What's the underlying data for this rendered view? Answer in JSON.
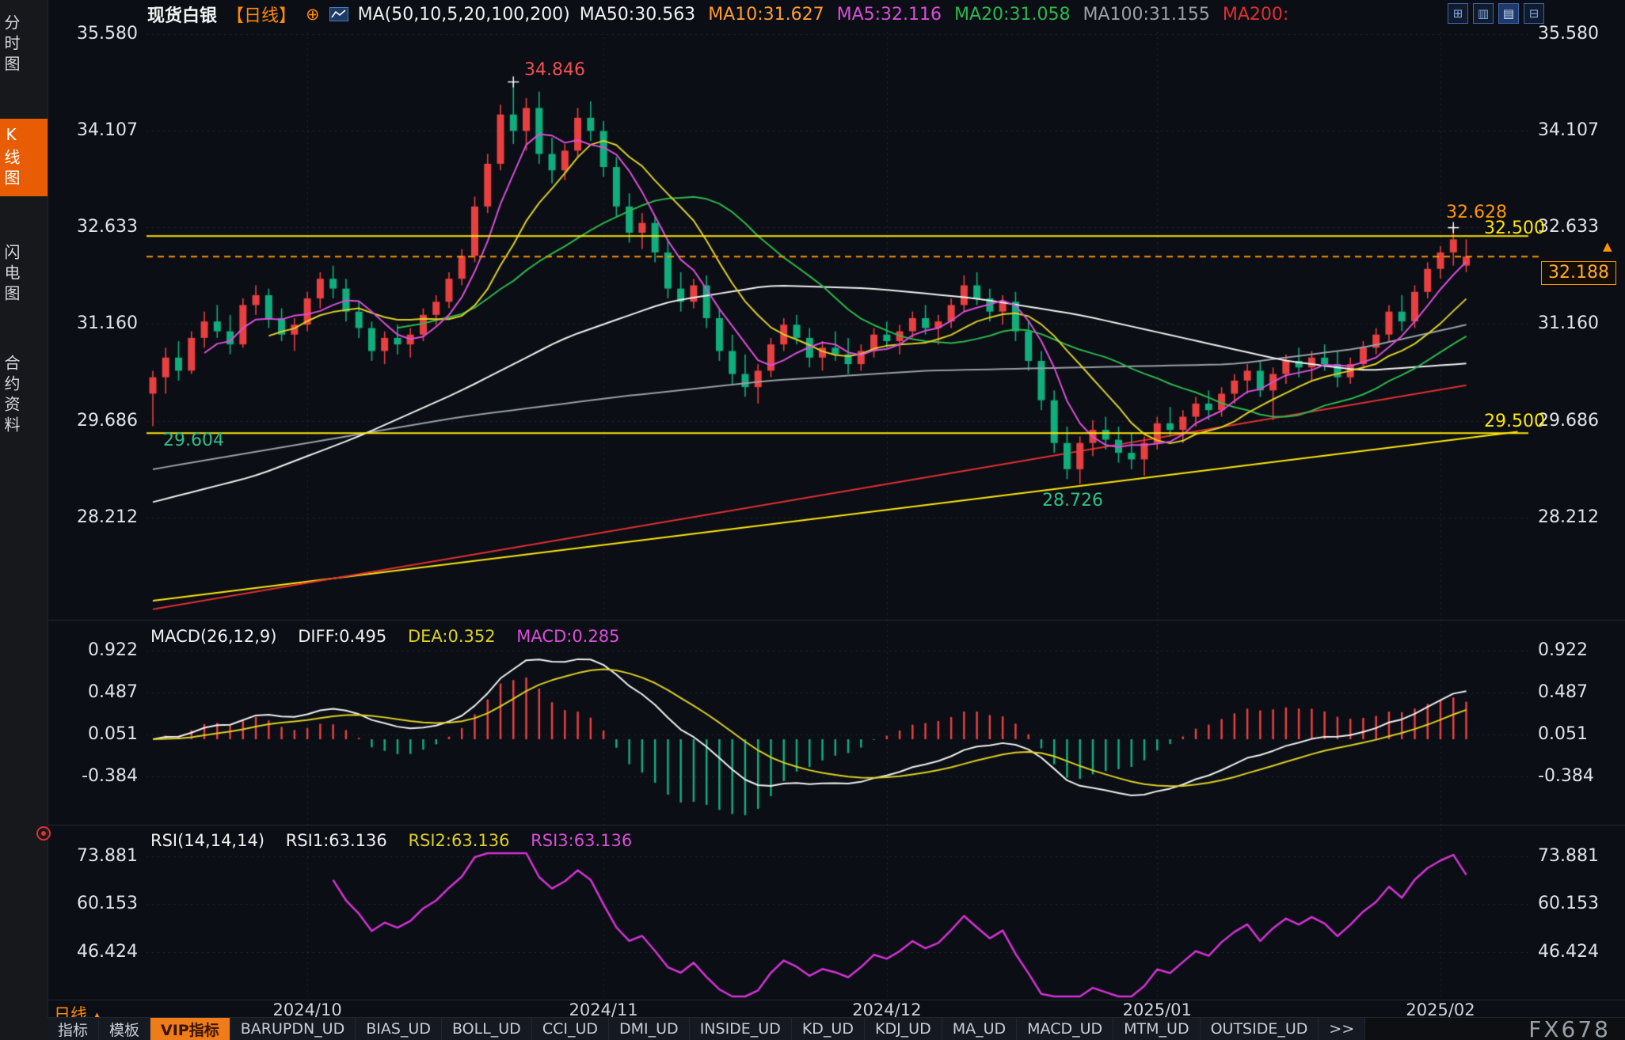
{
  "app": {
    "watermark": "FX678"
  },
  "colors": {
    "background": "#0b0e15",
    "up": "#e84040",
    "down": "#0fae7c",
    "ma5": "#d94fd9",
    "ma10": "#ddd024",
    "ma20": "#2db84d",
    "ma50": "#f0f0f0",
    "ma100": "#9aa0a8",
    "ma200": "#e03030",
    "drawn_line": "#ffe60a",
    "current_price": "#ff9500",
    "dif": "#f0f0f0",
    "dea": "#ddd024",
    "rsi": "#d633d6",
    "accent_orange": "#ff8a00"
  },
  "sidebar": {
    "items": [
      {
        "label": "分时图",
        "active": false
      },
      {
        "label": "K线图",
        "active": true
      },
      {
        "label": "闪电图",
        "active": false
      },
      {
        "label": "合约资料",
        "active": false
      }
    ]
  },
  "header": {
    "symbol": "现货白银",
    "period_tag": "【日线】",
    "plus_icon": "⊕",
    "ma_settings": "MA(50,10,5,20,100,200)",
    "ma_values": [
      {
        "label": "MA50:30.563",
        "color": "#f0f0f0"
      },
      {
        "label": "MA10:31.627",
        "color": "#ff9d2e"
      },
      {
        "label": "MA5:32.116",
        "color": "#d94fd9"
      },
      {
        "label": "MA20:31.058",
        "color": "#2db84d"
      },
      {
        "label": "MA100:31.155",
        "color": "#9aa0a8"
      },
      {
        "label": "MA200:",
        "color": "#e03030"
      }
    ],
    "toolbar_icons": [
      {
        "name": "grid-layout-icon",
        "glyph": "⊞",
        "active": false
      },
      {
        "name": "candlestick-view-icon",
        "glyph": "▥",
        "active": false
      },
      {
        "name": "line-view-icon",
        "glyph": "▤",
        "active": true
      },
      {
        "name": "expand-panel-icon",
        "glyph": "⊟",
        "active": false
      }
    ]
  },
  "macd_panel": {
    "title": "MACD(26,12,9)",
    "diff": "DIFF:0.495",
    "dea": "DEA:0.352",
    "macd": "MACD:0.285"
  },
  "rsi_panel": {
    "title": "RSI(14,14,14)",
    "rsi1": "RSI1:63.136",
    "rsi2": "RSI2:63.136",
    "rsi3": "RSI3:63.136"
  },
  "annotations": {
    "peak": "34.846",
    "left_low": "29.604",
    "crash_low": "28.726",
    "last_high": "32.628",
    "resistance": "32.500",
    "support": "29.500",
    "current_price": "32.188",
    "up_arrow": "▲"
  },
  "footer": {
    "period_label": "日线",
    "period_arrow": "▲",
    "tabs": [
      {
        "label": "指标",
        "active": false
      },
      {
        "label": "模板",
        "active": false
      },
      {
        "label": "VIP指标",
        "active": true
      },
      {
        "label": "BARUPDN_UD",
        "active": false
      },
      {
        "label": "BIAS_UD",
        "active": false
      },
      {
        "label": "BOLL_UD",
        "active": false
      },
      {
        "label": "CCI_UD",
        "active": false
      },
      {
        "label": "DMI_UD",
        "active": false
      },
      {
        "label": "INSIDE_UD",
        "active": false
      },
      {
        "label": "KD_UD",
        "active": false
      },
      {
        "label": "KDJ_UD",
        "active": false
      },
      {
        "label": "MA_UD",
        "active": false
      },
      {
        "label": "MACD_UD",
        "active": false
      },
      {
        "label": "MTM_UD",
        "active": false
      },
      {
        "label": "OUTSIDE_UD",
        "active": false
      },
      {
        "label": ">>",
        "active": false
      }
    ]
  },
  "chart_data": {
    "type": "candlestick",
    "title": "现货白银 日线",
    "price_axis_ticks": [
      "35.580",
      "34.107",
      "32.633",
      "31.160",
      "29.686",
      "28.212"
    ],
    "x_tick_labels": [
      "2024/10",
      "2024/11",
      "2024/12",
      "2025/01",
      "2025/02"
    ],
    "x_tick_indices": [
      12,
      35,
      57,
      78,
      100
    ],
    "candles": [
      [
        30.1,
        30.45,
        29.604,
        30.35
      ],
      [
        30.35,
        30.8,
        30.1,
        30.65
      ],
      [
        30.65,
        30.9,
        30.3,
        30.45
      ],
      [
        30.45,
        31.05,
        30.4,
        30.95
      ],
      [
        30.95,
        31.35,
        30.8,
        31.2
      ],
      [
        31.2,
        31.45,
        30.95,
        31.05
      ],
      [
        31.05,
        31.3,
        30.7,
        30.85
      ],
      [
        30.85,
        31.55,
        30.8,
        31.45
      ],
      [
        31.45,
        31.75,
        31.3,
        31.6
      ],
      [
        31.6,
        31.7,
        31.1,
        31.25
      ],
      [
        31.25,
        31.4,
        30.9,
        31.0
      ],
      [
        31.0,
        31.25,
        30.75,
        31.15
      ],
      [
        31.15,
        31.65,
        31.05,
        31.55
      ],
      [
        31.55,
        31.95,
        31.4,
        31.85
      ],
      [
        31.85,
        32.05,
        31.55,
        31.7
      ],
      [
        31.7,
        31.85,
        31.2,
        31.35
      ],
      [
        31.35,
        31.5,
        30.95,
        31.1
      ],
      [
        31.1,
        31.2,
        30.6,
        30.75
      ],
      [
        30.75,
        31.05,
        30.55,
        30.95
      ],
      [
        30.95,
        31.15,
        30.7,
        30.85
      ],
      [
        30.85,
        31.1,
        30.65,
        31.0
      ],
      [
        31.0,
        31.4,
        30.9,
        31.3
      ],
      [
        31.3,
        31.6,
        31.15,
        31.5
      ],
      [
        31.5,
        31.95,
        31.4,
        31.85
      ],
      [
        31.85,
        32.3,
        31.75,
        32.2
      ],
      [
        32.2,
        33.1,
        32.1,
        32.95
      ],
      [
        32.95,
        33.75,
        32.85,
        33.6
      ],
      [
        33.6,
        34.5,
        33.5,
        34.35
      ],
      [
        34.35,
        34.846,
        33.9,
        34.1
      ],
      [
        34.1,
        34.6,
        33.8,
        34.45
      ],
      [
        34.45,
        34.7,
        33.6,
        33.75
      ],
      [
        33.75,
        34.0,
        33.3,
        33.5
      ],
      [
        33.5,
        33.9,
        33.35,
        33.8
      ],
      [
        33.8,
        34.45,
        33.7,
        34.3
      ],
      [
        34.3,
        34.55,
        33.95,
        34.1
      ],
      [
        34.1,
        34.25,
        33.4,
        33.55
      ],
      [
        33.55,
        33.7,
        32.8,
        32.95
      ],
      [
        32.95,
        33.15,
        32.4,
        32.55
      ],
      [
        32.55,
        32.85,
        32.3,
        32.7
      ],
      [
        32.7,
        32.8,
        32.1,
        32.25
      ],
      [
        32.25,
        32.45,
        31.55,
        31.7
      ],
      [
        31.7,
        31.95,
        31.35,
        31.5
      ],
      [
        31.5,
        31.85,
        31.4,
        31.75
      ],
      [
        31.75,
        31.9,
        31.1,
        31.25
      ],
      [
        31.25,
        31.4,
        30.6,
        30.75
      ],
      [
        30.75,
        31.0,
        30.25,
        30.4
      ],
      [
        30.4,
        30.7,
        30.05,
        30.2
      ],
      [
        30.2,
        30.55,
        29.95,
        30.45
      ],
      [
        30.45,
        30.95,
        30.35,
        30.85
      ],
      [
        30.85,
        31.25,
        30.75,
        31.15
      ],
      [
        31.15,
        31.3,
        30.85,
        30.95
      ],
      [
        30.95,
        31.1,
        30.5,
        30.65
      ],
      [
        30.65,
        30.9,
        30.45,
        30.8
      ],
      [
        30.8,
        31.05,
        30.6,
        30.7
      ],
      [
        30.7,
        30.95,
        30.4,
        30.55
      ],
      [
        30.55,
        30.85,
        30.45,
        30.75
      ],
      [
        30.75,
        31.1,
        30.65,
        31.0
      ],
      [
        31.0,
        31.2,
        30.8,
        30.9
      ],
      [
        30.9,
        31.15,
        30.7,
        31.05
      ],
      [
        31.05,
        31.35,
        30.95,
        31.25
      ],
      [
        31.25,
        31.45,
        31.0,
        31.1
      ],
      [
        31.1,
        31.3,
        30.85,
        31.2
      ],
      [
        31.2,
        31.55,
        31.1,
        31.45
      ],
      [
        31.45,
        31.9,
        31.35,
        31.75
      ],
      [
        31.75,
        31.95,
        31.45,
        31.55
      ],
      [
        31.55,
        31.7,
        31.2,
        31.35
      ],
      [
        31.35,
        31.6,
        31.15,
        31.5
      ],
      [
        31.5,
        31.65,
        30.9,
        31.05
      ],
      [
        31.05,
        31.2,
        30.45,
        30.6
      ],
      [
        30.6,
        30.75,
        29.85,
        30.0
      ],
      [
        30.0,
        30.15,
        29.2,
        29.35
      ],
      [
        29.35,
        29.6,
        28.8,
        28.95
      ],
      [
        28.95,
        29.45,
        28.726,
        29.35
      ],
      [
        29.35,
        29.7,
        29.15,
        29.55
      ],
      [
        29.55,
        29.75,
        29.25,
        29.4
      ],
      [
        29.4,
        29.6,
        29.05,
        29.2
      ],
      [
        29.2,
        29.5,
        28.95,
        29.1
      ],
      [
        29.1,
        29.45,
        28.85,
        29.35
      ],
      [
        29.35,
        29.75,
        29.25,
        29.65
      ],
      [
        29.65,
        29.9,
        29.45,
        29.55
      ],
      [
        29.55,
        29.85,
        29.35,
        29.75
      ],
      [
        29.75,
        30.05,
        29.6,
        29.95
      ],
      [
        29.95,
        30.15,
        29.7,
        29.85
      ],
      [
        29.85,
        30.2,
        29.75,
        30.1
      ],
      [
        30.1,
        30.4,
        29.95,
        30.3
      ],
      [
        30.3,
        30.55,
        30.1,
        30.45
      ],
      [
        30.45,
        30.6,
        30.05,
        30.15
      ],
      [
        30.15,
        30.5,
        29.7,
        30.4
      ],
      [
        30.4,
        30.7,
        30.25,
        30.6
      ],
      [
        30.6,
        30.8,
        30.35,
        30.5
      ],
      [
        30.5,
        30.75,
        30.3,
        30.65
      ],
      [
        30.65,
        30.85,
        30.45,
        30.55
      ],
      [
        30.55,
        30.75,
        30.2,
        30.35
      ],
      [
        30.35,
        30.65,
        30.25,
        30.55
      ],
      [
        30.55,
        30.9,
        30.45,
        30.8
      ],
      [
        30.8,
        31.1,
        30.7,
        31.0
      ],
      [
        31.0,
        31.45,
        30.9,
        31.35
      ],
      [
        31.35,
        31.6,
        31.05,
        31.2
      ],
      [
        31.2,
        31.75,
        31.1,
        31.65
      ],
      [
        31.65,
        32.1,
        31.55,
        32.0
      ],
      [
        32.0,
        32.35,
        31.85,
        32.25
      ],
      [
        32.25,
        32.628,
        32.05,
        32.45
      ],
      [
        32.05,
        32.45,
        31.95,
        32.188
      ]
    ],
    "overlays": {
      "ma_periods": [
        5,
        10,
        20
      ],
      "ma50_points": [
        [
          0,
          28.45
        ],
        [
          8,
          28.85
        ],
        [
          16,
          29.45
        ],
        [
          24,
          30.15
        ],
        [
          32,
          30.95
        ],
        [
          40,
          31.5
        ],
        [
          48,
          31.75
        ],
        [
          56,
          31.7
        ],
        [
          64,
          31.55
        ],
        [
          72,
          31.3
        ],
        [
          80,
          30.95
        ],
        [
          88,
          30.6
        ],
        [
          94,
          30.45
        ],
        [
          102,
          30.56
        ]
      ],
      "ma100_points": [
        [
          0,
          28.95
        ],
        [
          12,
          29.35
        ],
        [
          24,
          29.75
        ],
        [
          36,
          30.05
        ],
        [
          48,
          30.3
        ],
        [
          60,
          30.45
        ],
        [
          72,
          30.5
        ],
        [
          84,
          30.55
        ],
        [
          94,
          30.8
        ],
        [
          102,
          31.15
        ]
      ],
      "ma200_points": [
        [
          0,
          26.82
        ],
        [
          102,
          30.23
        ]
      ],
      "trendline": {
        "from": [
          0,
          26.95
        ],
        "to": [
          106,
          29.52
        ]
      },
      "hlines": [
        {
          "price": 32.5,
          "label": "32.500"
        },
        {
          "price": 29.5,
          "label": "29.500"
        }
      ],
      "current_price": 32.188,
      "peak_marker_index": 28,
      "last_high_marker_index": 101
    },
    "macd": {
      "params": [
        26,
        12,
        9
      ],
      "ticks": [
        "0.922",
        "0.487",
        "0.051",
        "-0.384"
      ]
    },
    "rsi": {
      "params": [
        14,
        14,
        14
      ],
      "ticks": [
        "73.881",
        "60.153",
        "46.424"
      ]
    }
  }
}
